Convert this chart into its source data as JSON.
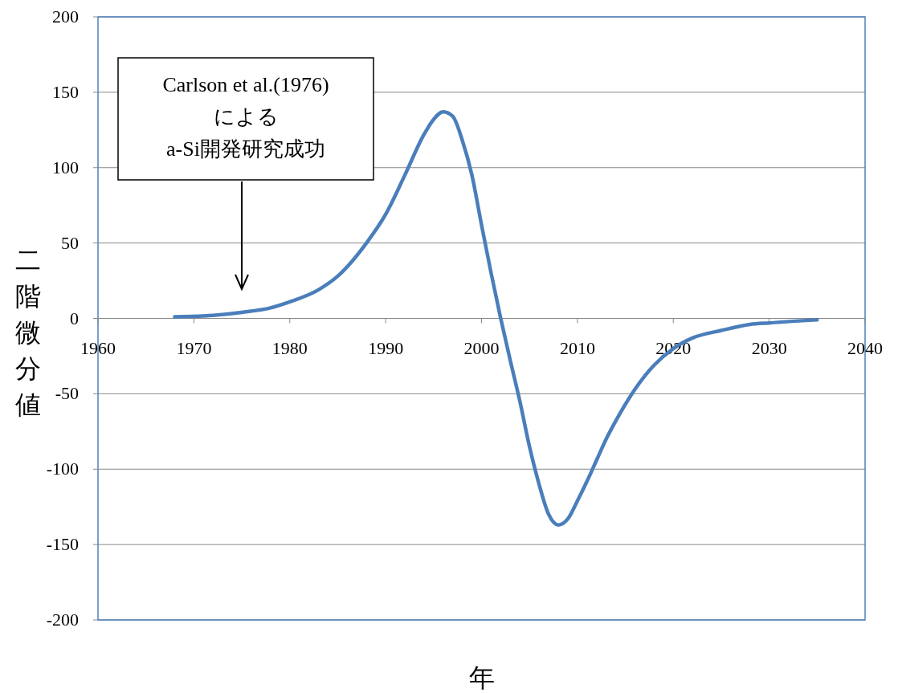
{
  "chart_data": {
    "type": "line",
    "xlabel": "年",
    "ylabel": "二階微分値",
    "x": [
      1968,
      1972,
      1975,
      1978,
      1980,
      1983,
      1985,
      1988,
      1990,
      1992,
      1994,
      1995,
      1996,
      1997,
      1998,
      1999,
      2000,
      2001,
      2002,
      2003,
      2004,
      2005,
      2006,
      2007,
      2008,
      2009,
      2010,
      2011,
      2012,
      2013,
      2014,
      2015,
      2016,
      2018,
      2020,
      2022,
      2025,
      2028,
      2030,
      2035
    ],
    "series": [
      {
        "color": "#4a7ebb",
        "values": [
          1,
          2,
          4,
          7,
          11,
          19,
          28,
          50,
          69,
          95,
          122,
          132,
          137,
          134,
          118,
          95,
          62,
          30,
          0,
          -28,
          -55,
          -85,
          -110,
          -130,
          -137,
          -133,
          -121,
          -108,
          -94,
          -80,
          -68,
          -57,
          -47,
          -31,
          -20,
          -13,
          -8,
          -4,
          -3,
          -1
        ]
      }
    ],
    "xlim": [
      1960,
      2040
    ],
    "xticks": [
      1960,
      1970,
      1980,
      1990,
      2000,
      2010,
      2020,
      2030,
      2040
    ],
    "ylim": [
      -200,
      200
    ],
    "yticks": [
      -200,
      -150,
      -100,
      -50,
      0,
      50,
      100,
      150,
      200
    ],
    "grid": "y",
    "marker": "none",
    "line_style": "solid",
    "annotations": [
      "Carlson et al.(1976)\nによる\na-Si開発研究成功"
    ]
  }
}
